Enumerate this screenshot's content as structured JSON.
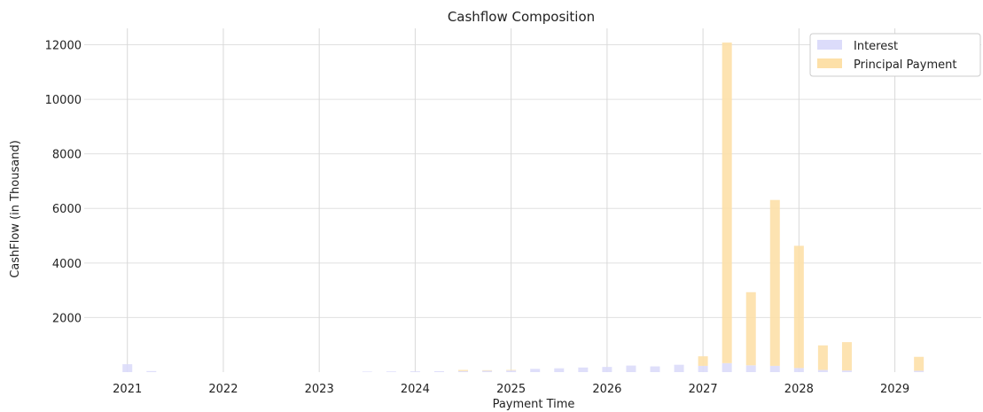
{
  "chart_data": {
    "type": "bar",
    "title": "Cashflow Composition",
    "xlabel": "Payment Time",
    "ylabel": "CashFlow (in Thousand)",
    "x_ticks": [
      "2021",
      "2022",
      "2023",
      "2024",
      "2025",
      "2026",
      "2027",
      "2028",
      "2029"
    ],
    "y_ticks": [
      2000,
      4000,
      6000,
      8000,
      10000,
      12000
    ],
    "xlim": [
      2020.55,
      2029.9
    ],
    "ylim": [
      0,
      12600
    ],
    "grid": true,
    "legend_position": "top-right",
    "stacked": true,
    "x": [
      2021.0,
      2021.25,
      2023.5,
      2023.75,
      2024.0,
      2024.25,
      2024.5,
      2024.75,
      2025.0,
      2025.25,
      2025.5,
      2025.75,
      2026.0,
      2026.25,
      2026.5,
      2026.75,
      2027.0,
      2027.25,
      2027.5,
      2027.75,
      2028.0,
      2028.25,
      2028.5,
      2029.25
    ],
    "series": [
      {
        "name": "Interest",
        "color": "#dcdcfa",
        "values": [
          290,
          40,
          20,
          25,
          30,
          35,
          40,
          50,
          60,
          120,
          140,
          170,
          190,
          240,
          210,
          270,
          230,
          330,
          250,
          230,
          150,
          80,
          60,
          50
        ]
      },
      {
        "name": "Principal Payment",
        "color": "#fde0a8",
        "values": [
          0,
          0,
          0,
          0,
          0,
          0,
          40,
          20,
          20,
          0,
          0,
          0,
          0,
          0,
          0,
          0,
          350,
          11750,
          2680,
          6080,
          4480,
          900,
          1040,
          510
        ]
      }
    ]
  }
}
